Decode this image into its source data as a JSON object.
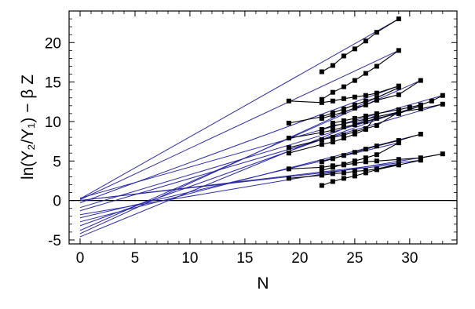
{
  "chart_data": {
    "type": "line",
    "title": "",
    "xlabel": "N",
    "ylabel": "ln(Y₂/Y₁) − β Z",
    "xlim": [
      -1,
      34.3
    ],
    "ylim": [
      -5.5,
      24
    ],
    "xticks": [
      0,
      5,
      10,
      15,
      20,
      25,
      30
    ],
    "yticks": [
      -5,
      0,
      5,
      10,
      15,
      20
    ],
    "zero_line": true,
    "grid": false,
    "colors": {
      "fit_line": "#2a2aa6",
      "data_line": "#000000",
      "frame": "#000000"
    },
    "fit_lines": [
      {
        "intercept": 0.2,
        "end_x": 29,
        "end_y": 23.0
      },
      {
        "intercept": 0.1,
        "end_x": 29,
        "end_y": 19.0
      },
      {
        "intercept": -0.3,
        "end_x": 29,
        "end_y": 14.5
      },
      {
        "intercept": -4.2,
        "end_x": 29,
        "end_y": 14.3
      },
      {
        "intercept": -3.8,
        "end_x": 31,
        "end_y": 15.2
      },
      {
        "intercept": 0.3,
        "end_x": 33,
        "end_y": 13.3
      },
      {
        "intercept": -1.3,
        "end_x": 33,
        "end_y": 12.2
      },
      {
        "intercept": -0.9,
        "end_x": 31,
        "end_y": 12.0
      },
      {
        "intercept": -3.2,
        "end_x": 29,
        "end_y": 11.2
      },
      {
        "intercept": -4.6,
        "end_x": 27,
        "end_y": 10.8
      },
      {
        "intercept": -2.7,
        "end_x": 31,
        "end_y": 8.4
      },
      {
        "intercept": -2.2,
        "end_x": 29,
        "end_y": 7.3
      },
      {
        "intercept": -1.8,
        "end_x": 33,
        "end_y": 5.9
      },
      {
        "intercept": 0.0,
        "end_x": 29,
        "end_y": 4.6
      },
      {
        "intercept": 0.0,
        "end_x": 31,
        "end_y": 5.1
      }
    ],
    "series": [
      {
        "x": [
          22,
          23,
          24,
          25,
          26,
          27,
          29
        ],
        "y": [
          16.3,
          17.1,
          18.3,
          19.2,
          20.2,
          21.3,
          23.0
        ]
      },
      {
        "x": [
          22,
          23,
          24,
          25,
          26,
          27,
          29
        ],
        "y": [
          12.8,
          13.7,
          14.4,
          15.2,
          16.1,
          17.0,
          19.0
        ]
      },
      {
        "x": [
          19,
          22,
          23,
          24,
          25,
          26,
          27,
          29
        ],
        "y": [
          12.6,
          12.4,
          12.6,
          12.9,
          13.1,
          13.3,
          13.6,
          14.5
        ]
      },
      {
        "x": [
          19,
          22,
          23,
          24,
          25,
          26,
          27,
          29
        ],
        "y": [
          9.8,
          10.6,
          11.1,
          11.6,
          12.1,
          12.6,
          13.0,
          14.3
        ]
      },
      {
        "x": [
          22,
          23,
          24,
          25,
          26,
          27,
          29,
          31
        ],
        "y": [
          10.4,
          10.8,
          11.2,
          11.7,
          12.1,
          12.7,
          13.4,
          15.2
        ]
      },
      {
        "x": [
          23,
          24,
          25,
          26,
          27,
          29,
          30,
          31,
          32,
          33
        ],
        "y": [
          9.8,
          10.1,
          10.4,
          10.7,
          11.0,
          11.5,
          11.8,
          12.1,
          12.6,
          13.3
        ]
      },
      {
        "x": [
          22,
          23,
          24,
          25,
          26,
          27,
          29,
          31,
          33
        ],
        "y": [
          9.0,
          9.5,
          9.7,
          10.0,
          10.3,
          10.6,
          11.2,
          11.6,
          12.2
        ]
      },
      {
        "x": [
          19,
          22,
          23,
          24,
          25,
          26,
          27,
          29,
          31
        ],
        "y": [
          7.9,
          8.6,
          8.9,
          9.3,
          9.6,
          10.0,
          10.4,
          11.0,
          12.0
        ]
      },
      {
        "x": [
          19,
          22,
          23,
          24,
          25,
          26,
          27,
          29
        ],
        "y": [
          6.7,
          7.7,
          8.0,
          8.3,
          8.7,
          9.1,
          9.5,
          11.2
        ]
      },
      {
        "x": [
          19,
          22,
          23,
          24,
          25,
          26,
          27
        ],
        "y": [
          6.0,
          7.1,
          7.4,
          7.9,
          8.4,
          9.0,
          10.8
        ]
      },
      {
        "x": [
          22,
          23,
          24,
          25,
          26,
          27,
          29,
          31
        ],
        "y": [
          4.9,
          5.3,
          5.7,
          6.1,
          6.5,
          6.9,
          7.6,
          8.4
        ]
      },
      {
        "x": [
          22,
          23,
          24,
          25,
          26,
          27,
          29
        ],
        "y": [
          3.8,
          4.2,
          4.6,
          5.0,
          5.4,
          5.8,
          7.3
        ]
      },
      {
        "x": [
          19,
          22,
          23,
          24,
          25,
          26,
          27,
          29,
          31,
          33
        ],
        "y": [
          4.0,
          4.2,
          4.4,
          4.5,
          4.7,
          4.9,
          5.0,
          5.2,
          5.4,
          5.9
        ]
      },
      {
        "x": [
          19,
          22,
          23,
          24,
          25,
          26,
          27,
          29
        ],
        "y": [
          2.8,
          3.2,
          3.4,
          3.5,
          3.7,
          3.8,
          4.0,
          4.6
        ]
      },
      {
        "x": [
          22,
          23,
          24,
          25,
          26,
          27,
          29,
          31
        ],
        "y": [
          1.9,
          2.4,
          2.8,
          3.1,
          3.5,
          3.9,
          4.5,
          5.1
        ]
      }
    ]
  }
}
